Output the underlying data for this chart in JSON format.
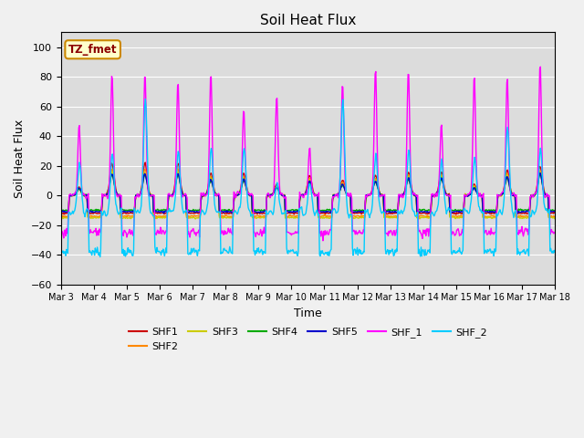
{
  "title": "Soil Heat Flux",
  "xlabel": "Time",
  "ylabel": "Soil Heat Flux",
  "ylim": [
    -60,
    110
  ],
  "yticks": [
    -60,
    -40,
    -20,
    0,
    20,
    40,
    60,
    80,
    100
  ],
  "series_colors": {
    "SHF1": "#cc0000",
    "SHF2": "#ff8800",
    "SHF3": "#cccc00",
    "SHF4": "#00aa00",
    "SHF5": "#0000cc",
    "SHF_1": "#ff00ff",
    "SHF_2": "#00ccff"
  },
  "legend_label": "TZ_fmet",
  "legend_bg": "#ffffcc",
  "legend_edge": "#cc8800",
  "fig_bg": "#f0f0f0",
  "plot_bg": "#dcdcdc",
  "grid_color": "#ffffff",
  "linewidth": 1.0,
  "day_peaks_shf1": [
    6,
    22,
    22,
    22,
    15,
    15,
    7,
    14,
    10,
    14,
    16,
    16,
    8,
    17,
    20
  ],
  "day_peaks_shf2": [
    5,
    18,
    18,
    18,
    13,
    13,
    6,
    12,
    9,
    12,
    14,
    14,
    7,
    15,
    17
  ],
  "day_peaks_shf3": [
    5,
    16,
    16,
    16,
    12,
    12,
    6,
    11,
    8,
    11,
    13,
    13,
    6,
    14,
    16
  ],
  "day_peaks_shf4": [
    4,
    14,
    14,
    14,
    10,
    10,
    5,
    9,
    7,
    9,
    11,
    11,
    5,
    12,
    14
  ],
  "day_peaks_shf5": [
    5,
    15,
    15,
    15,
    11,
    11,
    5,
    10,
    8,
    10,
    12,
    12,
    5,
    13,
    15
  ],
  "day_peaks_shf1_": [
    49,
    85,
    86,
    80,
    84,
    60,
    70,
    32,
    79,
    90,
    90,
    51,
    84,
    82,
    93
  ],
  "day_peaks_shf2_": [
    37,
    40,
    80,
    44,
    45,
    46,
    20,
    21,
    79,
    42,
    44,
    38,
    42,
    60,
    46
  ]
}
